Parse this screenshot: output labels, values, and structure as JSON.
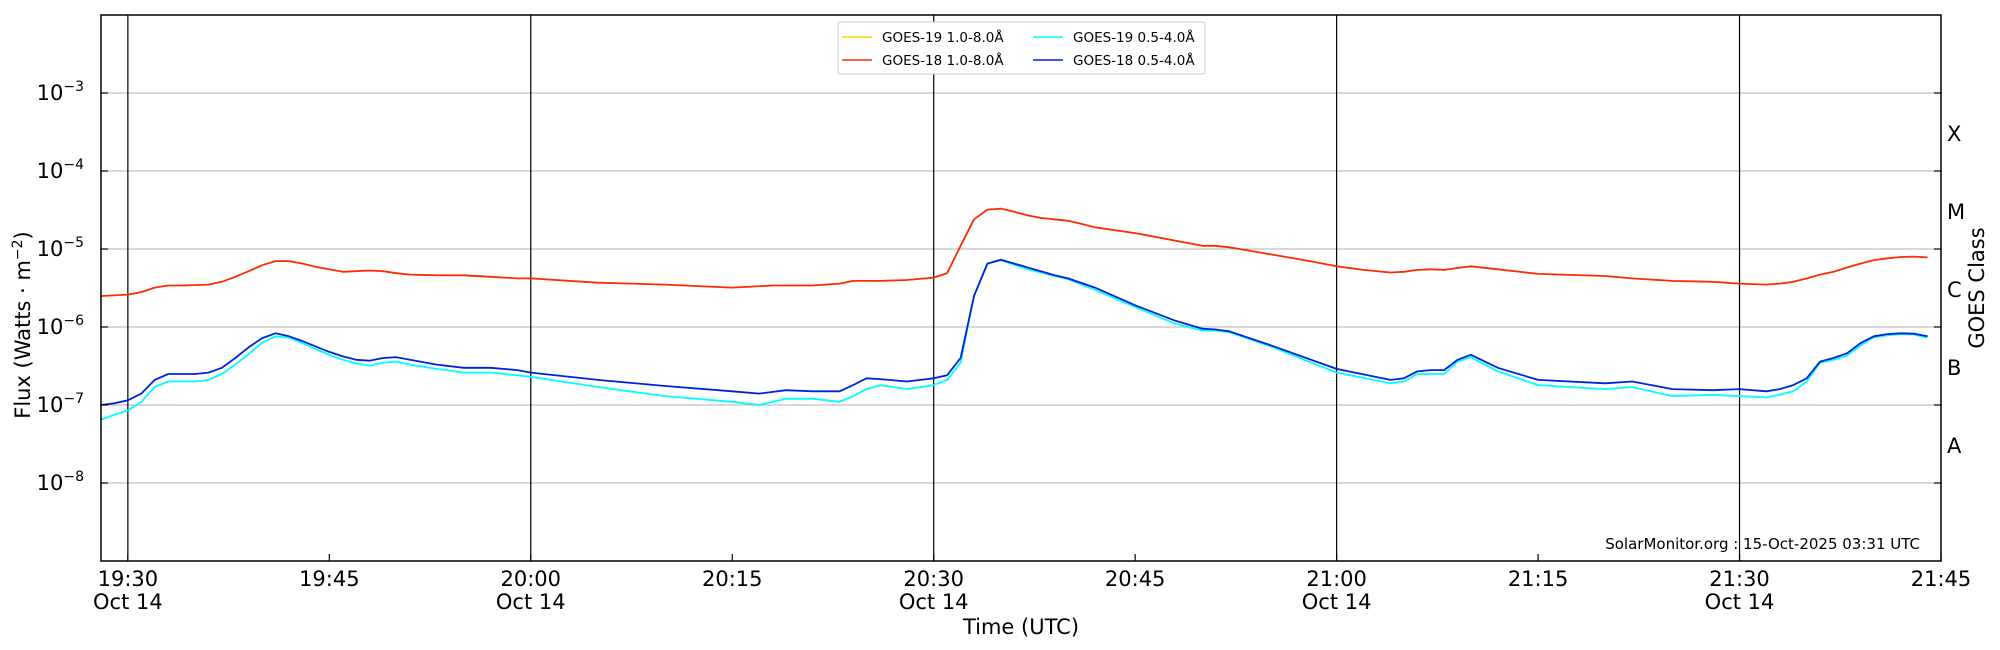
{
  "chart_data": {
    "type": "line",
    "ylabel_main": "Flux (Watts · m",
    "ylabel_exp": "−2",
    "ylabel_close": ")",
    "xlabel": "Time (UTC)",
    "right_label": "GOES Class",
    "credit": "SolarMonitor.org : 15-Oct-2025 03:31 UTC",
    "y_scale": "log",
    "ylim": [
      1e-09,
      0.01
    ],
    "xlim": [
      "19:28",
      "21:45"
    ],
    "grid": "horizontal",
    "legend_position": "top-center",
    "yticks": [
      {
        "value": 1e-08,
        "base": "10",
        "exp": "−8"
      },
      {
        "value": 1e-07,
        "base": "10",
        "exp": "−7"
      },
      {
        "value": 1e-06,
        "base": "10",
        "exp": "−6"
      },
      {
        "value": 1e-05,
        "base": "10",
        "exp": "−5"
      },
      {
        "value": 0.0001,
        "base": "10",
        "exp": "−4"
      },
      {
        "value": 0.001,
        "base": "10",
        "exp": "−3"
      }
    ],
    "xticks": [
      {
        "time": "19:30",
        "label": "19:30",
        "sub": "Oct 14",
        "vline": true
      },
      {
        "time": "19:45",
        "label": "19:45",
        "sub": "",
        "vline": false
      },
      {
        "time": "20:00",
        "label": "20:00",
        "sub": "Oct 14",
        "vline": true
      },
      {
        "time": "20:15",
        "label": "20:15",
        "sub": "",
        "vline": false
      },
      {
        "time": "20:30",
        "label": "20:30",
        "sub": "Oct 14",
        "vline": true
      },
      {
        "time": "20:45",
        "label": "20:45",
        "sub": "",
        "vline": false
      },
      {
        "time": "21:00",
        "label": "21:00",
        "sub": "Oct 14",
        "vline": true
      },
      {
        "time": "21:15",
        "label": "21:15",
        "sub": "",
        "vline": false
      },
      {
        "time": "21:30",
        "label": "21:30",
        "sub": "Oct 14",
        "vline": true
      },
      {
        "time": "21:45",
        "label": "21:45",
        "sub": "",
        "vline": false
      }
    ],
    "classes": [
      {
        "label": "A",
        "value": 3e-08
      },
      {
        "label": "B",
        "value": 3e-07
      },
      {
        "label": "C",
        "value": 3e-06
      },
      {
        "label": "M",
        "value": 3e-05
      },
      {
        "label": "X",
        "value": 0.0003
      }
    ],
    "series": [
      {
        "name": "GOES-19 1.0-8.0Å",
        "color": "#FFD700",
        "x": [],
        "y": []
      },
      {
        "name": "GOES-18 1.0-8.0Å",
        "color": "#FF2A00",
        "x": [
          "19:28",
          "19:30",
          "19:31",
          "19:32",
          "19:33",
          "19:34",
          "19:36",
          "19:37",
          "19:38",
          "19:39",
          "19:40",
          "19:41",
          "19:42",
          "19:43",
          "19:44",
          "19:46",
          "19:48",
          "19:49",
          "19:50",
          "19:51",
          "19:53",
          "19:55",
          "19:57",
          "19:59",
          "20:00",
          "20:05",
          "20:10",
          "20:15",
          "20:18",
          "20:21",
          "20:23",
          "20:24",
          "20:26",
          "20:28",
          "20:30",
          "20:31",
          "20:32",
          "20:33",
          "20:34",
          "20:35",
          "20:36",
          "20:37",
          "20:38",
          "20:39",
          "20:40",
          "20:41",
          "20:42",
          "20:45",
          "20:50",
          "20:51",
          "20:52",
          "20:55",
          "20:58",
          "21:00",
          "21:02",
          "21:04",
          "21:05",
          "21:06",
          "21:07",
          "21:08",
          "21:09",
          "21:10",
          "21:12",
          "21:15",
          "21:20",
          "21:22",
          "21:25",
          "21:28",
          "21:30",
          "21:32",
          "21:33",
          "21:34",
          "21:35",
          "21:36",
          "21:37",
          "21:38",
          "21:39",
          "21:40",
          "21:41",
          "21:42",
          "21:43",
          "21:44"
        ],
        "y": [
          2.5e-06,
          2.6e-06,
          2.8e-06,
          3.2e-06,
          3.4e-06,
          3.4e-06,
          3.5e-06,
          3.8e-06,
          4.4e-06,
          5.2e-06,
          6.2e-06,
          7e-06,
          7e-06,
          6.5e-06,
          5.9e-06,
          5.1e-06,
          5.3e-06,
          5.2e-06,
          4.9e-06,
          4.7e-06,
          4.6e-06,
          4.6e-06,
          4.4e-06,
          4.2e-06,
          4.2e-06,
          3.7e-06,
          3.5e-06,
          3.2e-06,
          3.4e-06,
          3.4e-06,
          3.6e-06,
          3.9e-06,
          3.9e-06,
          4e-06,
          4.3e-06,
          4.9e-06,
          1.1e-05,
          2.4e-05,
          3.2e-05,
          3.3e-05,
          3e-05,
          2.7e-05,
          2.5e-05,
          2.4e-05,
          2.3e-05,
          2.1e-05,
          1.9e-05,
          1.6e-05,
          1.1e-05,
          1.1e-05,
          1.05e-05,
          8.6e-06,
          7e-06,
          6e-06,
          5.4e-06,
          5e-06,
          5.1e-06,
          5.4e-06,
          5.5e-06,
          5.4e-06,
          5.7e-06,
          6e-06,
          5.5e-06,
          4.8e-06,
          4.5e-06,
          4.2e-06,
          3.9e-06,
          3.8e-06,
          3.6e-06,
          3.5e-06,
          3.6e-06,
          3.8e-06,
          4.2e-06,
          4.7e-06,
          5.1e-06,
          5.8e-06,
          6.5e-06,
          7.2e-06,
          7.6e-06,
          7.9e-06,
          8e-06,
          7.8e-06
        ]
      },
      {
        "name": "GOES-19 0.5-4.0Å",
        "color": "#00FFFF",
        "x": [
          "19:28",
          "19:29",
          "19:30",
          "19:31",
          "19:32",
          "19:33",
          "19:34",
          "19:35",
          "19:36",
          "19:37",
          "19:38",
          "19:39",
          "19:40",
          "19:41",
          "19:42",
          "19:43",
          "19:44",
          "19:45",
          "19:46",
          "19:47",
          "19:48",
          "19:49",
          "19:50",
          "19:51",
          "19:53",
          "19:55",
          "19:57",
          "19:59",
          "20:00",
          "20:05",
          "20:10",
          "20:15",
          "20:17",
          "20:19",
          "20:21",
          "20:23",
          "20:24",
          "20:25",
          "20:26",
          "20:28",
          "20:30",
          "20:31",
          "20:32",
          "20:33",
          "20:34",
          "20:35",
          "20:37",
          "20:39",
          "20:40",
          "20:42",
          "20:45",
          "20:48",
          "20:50",
          "20:51",
          "20:52",
          "20:55",
          "21:00",
          "21:04",
          "21:05",
          "21:06",
          "21:07",
          "21:08",
          "21:09",
          "21:10",
          "21:12",
          "21:15",
          "21:20",
          "21:22",
          "21:25",
          "21:28",
          "21:30",
          "21:32",
          "21:33",
          "21:34",
          "21:35",
          "21:36",
          "21:37",
          "21:38",
          "21:39",
          "21:40",
          "21:41",
          "21:42",
          "21:43",
          "21:44"
        ],
        "y": [
          6.5e-08,
          7.5e-08,
          8.5e-08,
          1.1e-07,
          1.7e-07,
          2e-07,
          2e-07,
          2e-07,
          2.1e-07,
          2.5e-07,
          3.3e-07,
          4.5e-07,
          6.3e-07,
          7.6e-07,
          7.3e-07,
          6.2e-07,
          5.2e-07,
          4.4e-07,
          3.8e-07,
          3.4e-07,
          3.2e-07,
          3.5e-07,
          3.6e-07,
          3.3e-07,
          2.9e-07,
          2.6e-07,
          2.6e-07,
          2.4e-07,
          2.3e-07,
          1.7e-07,
          1.3e-07,
          1.1e-07,
          1e-07,
          1.2e-07,
          1.2e-07,
          1.1e-07,
          1.3e-07,
          1.6e-07,
          1.8e-07,
          1.6e-07,
          1.8e-07,
          2.1e-07,
          3.5e-07,
          2.5e-06,
          6.5e-06,
          7.2e-06,
          5.5e-06,
          4.5e-06,
          4.1e-06,
          3e-06,
          1.8e-06,
          1.1e-06,
          9e-07,
          9e-07,
          8.6e-07,
          5.7e-07,
          2.6e-07,
          1.9e-07,
          2e-07,
          2.5e-07,
          2.5e-07,
          2.5e-07,
          3.6e-07,
          4.1e-07,
          2.7e-07,
          1.8e-07,
          1.6e-07,
          1.7e-07,
          1.3e-07,
          1.35e-07,
          1.3e-07,
          1.25e-07,
          1.35e-07,
          1.5e-07,
          2e-07,
          3.5e-07,
          3.8e-07,
          4.3e-07,
          5.8e-07,
          7.4e-07,
          7.8e-07,
          8.1e-07,
          8e-07,
          7.3e-07
        ]
      },
      {
        "name": "GOES-18 0.5-4.0Å",
        "color": "#0022DD",
        "x": [
          "19:28",
          "19:29",
          "19:30",
          "19:31",
          "19:32",
          "19:33",
          "19:34",
          "19:35",
          "19:36",
          "19:37",
          "19:38",
          "19:39",
          "19:40",
          "19:41",
          "19:42",
          "19:43",
          "19:44",
          "19:45",
          "19:46",
          "19:47",
          "19:48",
          "19:49",
          "19:50",
          "19:51",
          "19:53",
          "19:55",
          "19:57",
          "19:59",
          "20:00",
          "20:05",
          "20:10",
          "20:15",
          "20:17",
          "20:19",
          "20:21",
          "20:23",
          "20:24",
          "20:25",
          "20:26",
          "20:28",
          "20:30",
          "20:31",
          "20:32",
          "20:33",
          "20:34",
          "20:35",
          "20:37",
          "20:39",
          "20:40",
          "20:42",
          "20:45",
          "20:48",
          "20:50",
          "20:51",
          "20:52",
          "20:55",
          "21:00",
          "21:04",
          "21:05",
          "21:06",
          "21:07",
          "21:08",
          "21:09",
          "21:10",
          "21:12",
          "21:15",
          "21:20",
          "21:22",
          "21:25",
          "21:28",
          "21:30",
          "21:32",
          "21:33",
          "21:34",
          "21:35",
          "21:36",
          "21:37",
          "21:38",
          "21:39",
          "21:40",
          "21:41",
          "21:42",
          "21:43",
          "21:44"
        ],
        "y": [
          1e-07,
          1.05e-07,
          1.15e-07,
          1.4e-07,
          2.1e-07,
          2.5e-07,
          2.5e-07,
          2.5e-07,
          2.6e-07,
          3e-07,
          4e-07,
          5.5e-07,
          7.2e-07,
          8.3e-07,
          7.6e-07,
          6.6e-07,
          5.6e-07,
          4.8e-07,
          4.2e-07,
          3.8e-07,
          3.7e-07,
          4e-07,
          4.1e-07,
          3.8e-07,
          3.3e-07,
          3e-07,
          3e-07,
          2.8e-07,
          2.6e-07,
          2.1e-07,
          1.75e-07,
          1.5e-07,
          1.4e-07,
          1.55e-07,
          1.5e-07,
          1.5e-07,
          1.8e-07,
          2.2e-07,
          2.15e-07,
          2e-07,
          2.2e-07,
          2.4e-07,
          4e-07,
          2.5e-06,
          6.5e-06,
          7.3e-06,
          5.8e-06,
          4.6e-06,
          4.2e-06,
          3.2e-06,
          1.9e-06,
          1.2e-06,
          9.5e-07,
          9.3e-07,
          8.8e-07,
          5.9e-07,
          2.9e-07,
          2.1e-07,
          2.2e-07,
          2.7e-07,
          2.8e-07,
          2.8e-07,
          3.8e-07,
          4.4e-07,
          3e-07,
          2.1e-07,
          1.9e-07,
          2e-07,
          1.6e-07,
          1.55e-07,
          1.6e-07,
          1.5e-07,
          1.6e-07,
          1.8e-07,
          2.2e-07,
          3.6e-07,
          4e-07,
          4.6e-07,
          6.2e-07,
          7.6e-07,
          8.1e-07,
          8.3e-07,
          8.2e-07,
          7.6e-07
        ]
      }
    ]
  }
}
